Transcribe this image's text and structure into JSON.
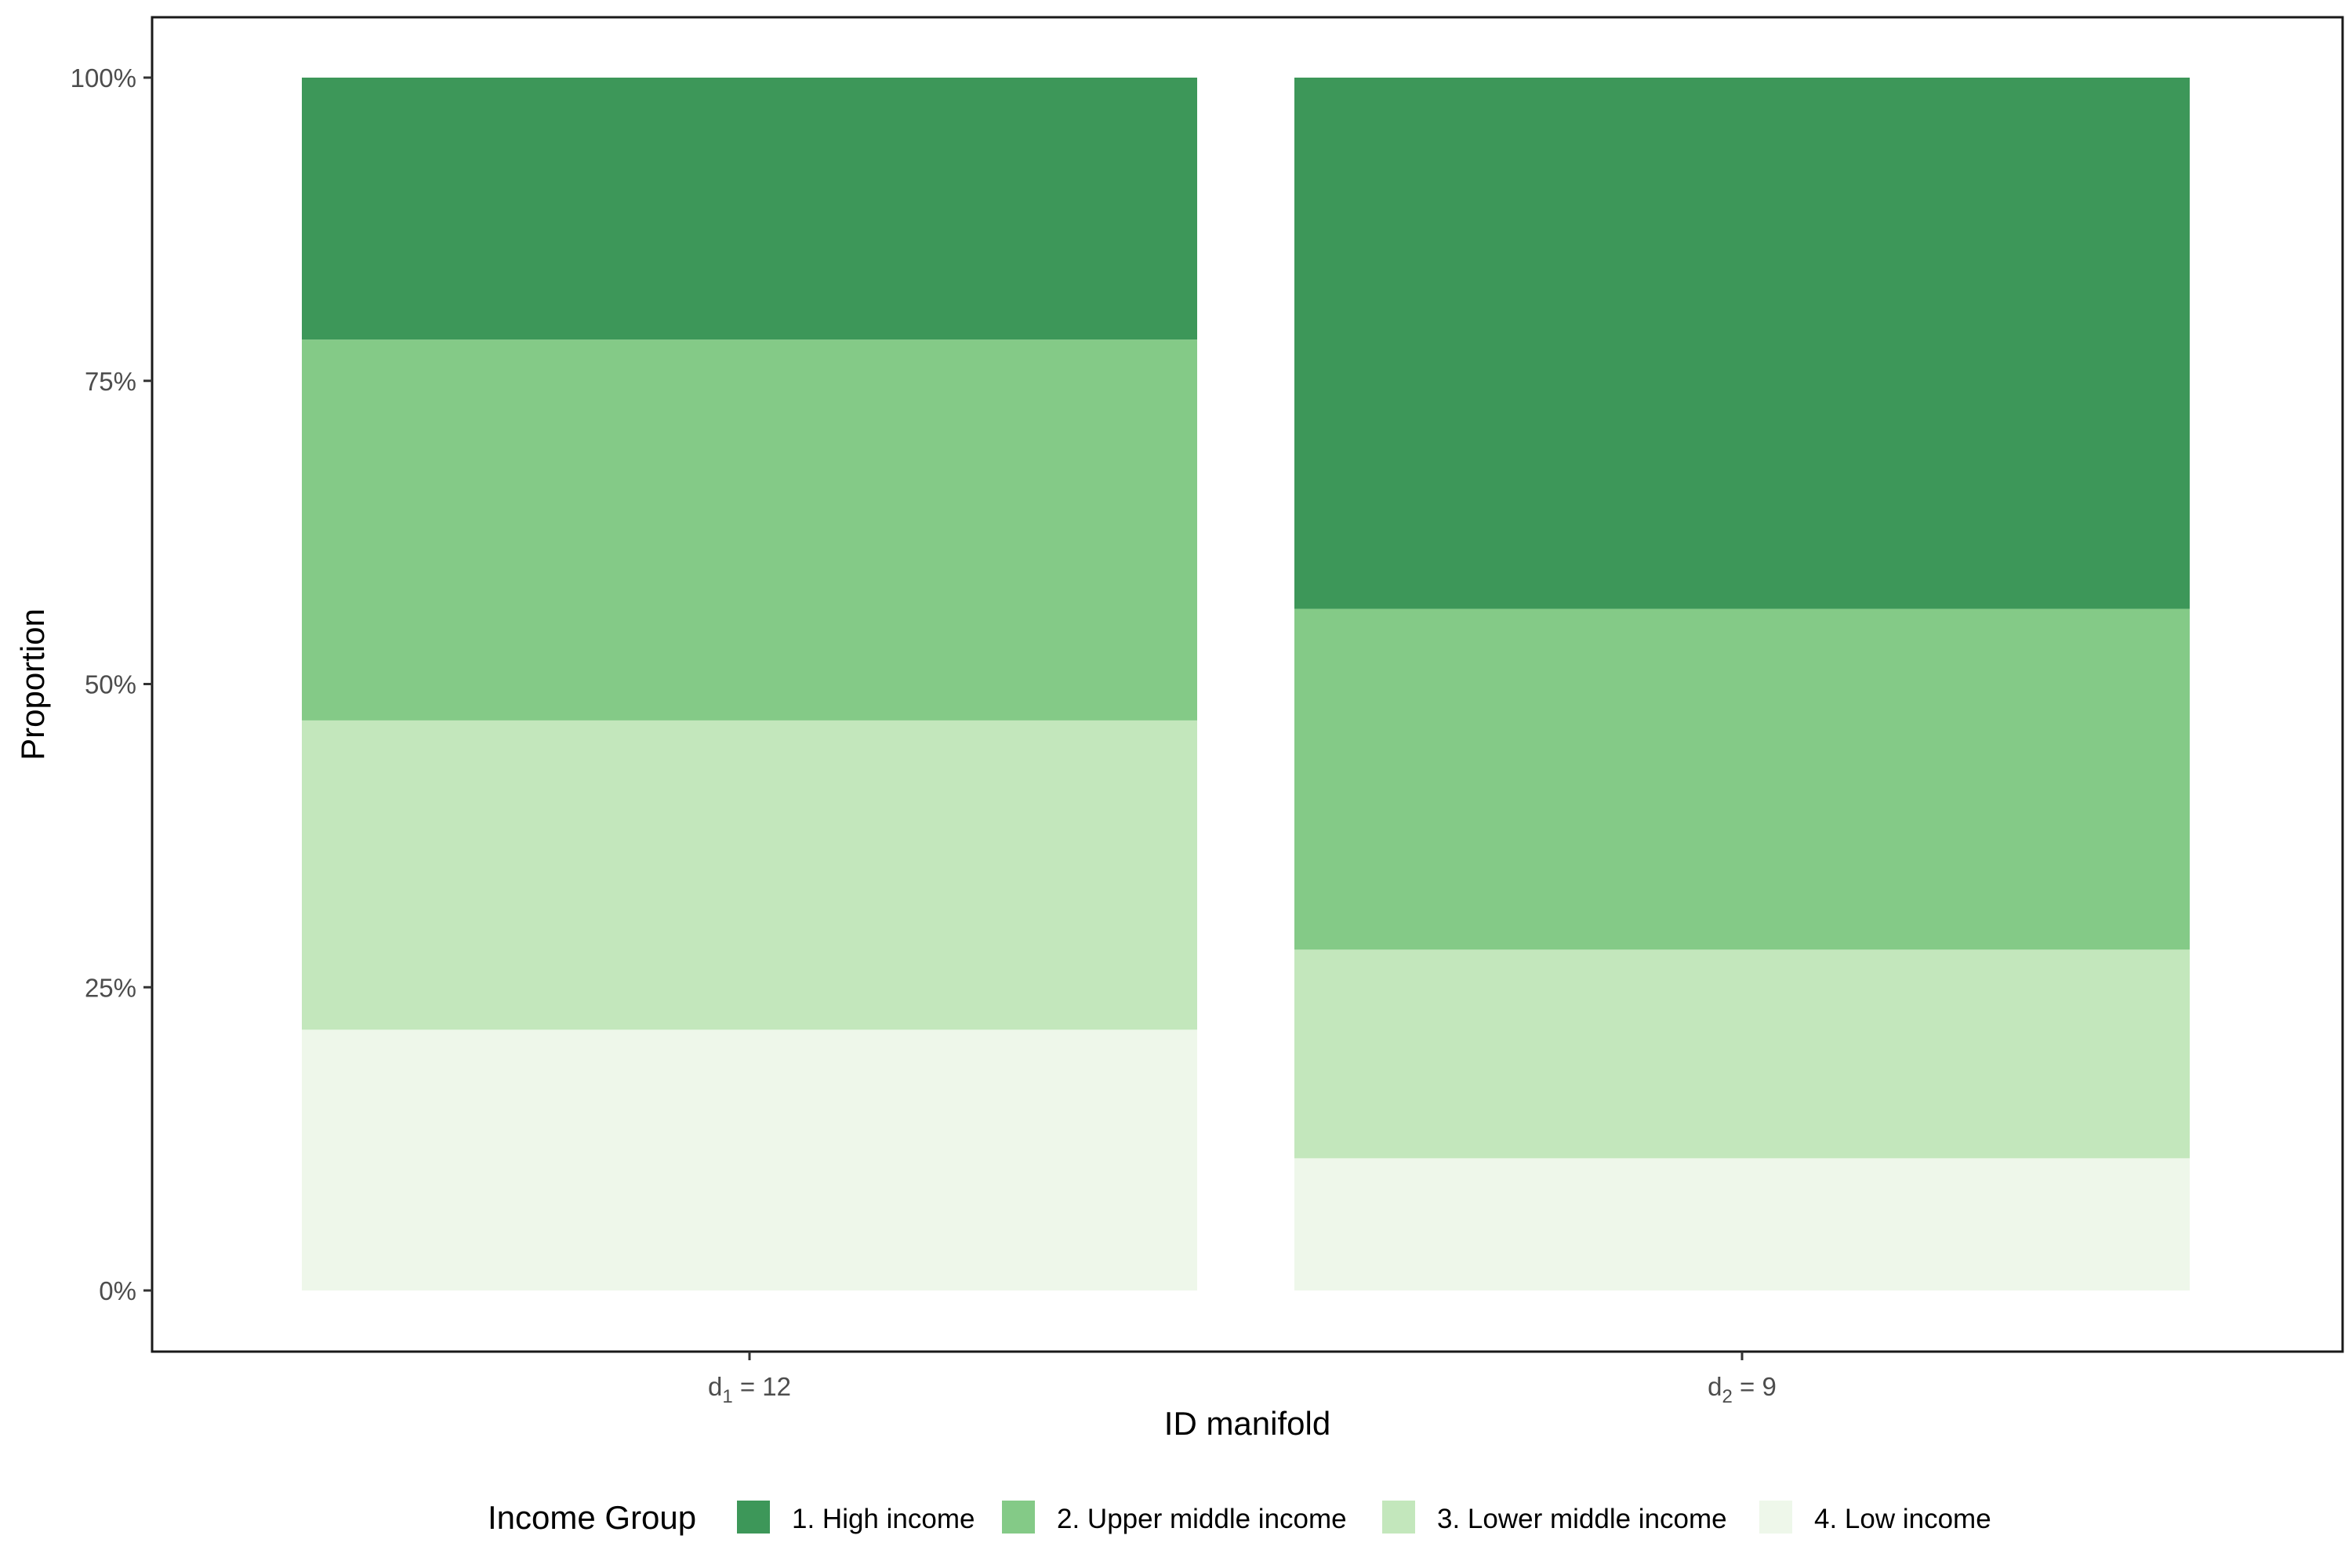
{
  "chart_data": {
    "type": "bar",
    "stacked": true,
    "percent_scale": true,
    "categories": [
      {
        "label": "d",
        "subscript": "1",
        "suffix": " = 12"
      },
      {
        "label": "d",
        "subscript": "2",
        "suffix": " = 9"
      }
    ],
    "series": [
      {
        "name": "1. High income",
        "color": "#3d9759",
        "values": [
          0.216,
          0.438
        ]
      },
      {
        "name": "2. Upper middle income",
        "color": "#84ca87",
        "values": [
          0.314,
          0.281
        ]
      },
      {
        "name": "3. Lower middle income",
        "color": "#c3e7bc",
        "values": [
          0.255,
          0.172
        ]
      },
      {
        "name": "4. Low income",
        "color": "#eef7ea",
        "values": [
          0.215,
          0.109
        ]
      }
    ],
    "xlabel": "ID manifold",
    "ylabel": "Proportion",
    "ylim": [
      0,
      1
    ],
    "yticks": [
      {
        "value": 0,
        "label": "0%"
      },
      {
        "value": 0.25,
        "label": "25%"
      },
      {
        "value": 0.5,
        "label": "50%"
      },
      {
        "value": 0.75,
        "label": "75%"
      },
      {
        "value": 1,
        "label": "100%"
      }
    ],
    "legend": {
      "title": "Income Group",
      "position": "bottom"
    },
    "grid": false,
    "panel_border": true
  }
}
